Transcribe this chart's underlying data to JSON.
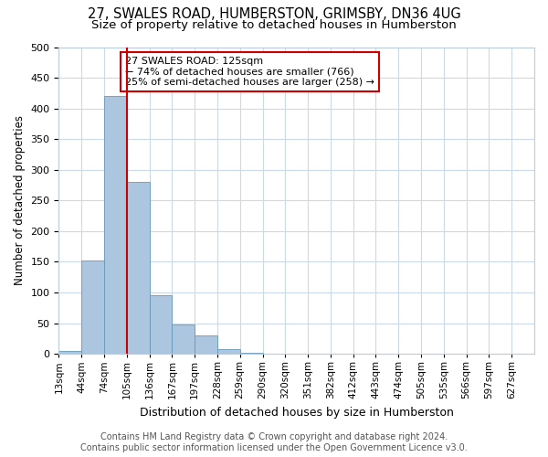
{
  "title": "27, SWALES ROAD, HUMBERSTON, GRIMSBY, DN36 4UG",
  "subtitle": "Size of property relative to detached houses in Humberston",
  "xlabel": "Distribution of detached houses by size in Humberston",
  "ylabel": "Number of detached properties",
  "bar_values": [
    5,
    152,
    420,
    280,
    96,
    48,
    30,
    8,
    2,
    0,
    0,
    0,
    0,
    0,
    0,
    0,
    0,
    0,
    0,
    0,
    0
  ],
  "bar_labels": [
    "13sqm",
    "44sqm",
    "74sqm",
    "105sqm",
    "136sqm",
    "167sqm",
    "197sqm",
    "228sqm",
    "259sqm",
    "290sqm",
    "320sqm",
    "351sqm",
    "382sqm",
    "412sqm",
    "443sqm",
    "474sqm",
    "505sqm",
    "535sqm",
    "566sqm",
    "597sqm",
    "627sqm"
  ],
  "bar_color": "#adc6e0",
  "bar_edge_color": "#6699bb",
  "property_line_x": 3.0,
  "property_line_color": "#cc0000",
  "annotation_text": "27 SWALES ROAD: 125sqm\n← 74% of detached houses are smaller (766)\n25% of semi-detached houses are larger (258) →",
  "annotation_box_edge": "#cc0000",
  "ylim": [
    0,
    500
  ],
  "yticks": [
    0,
    50,
    100,
    150,
    200,
    250,
    300,
    350,
    400,
    450,
    500
  ],
  "grid_color": "#ccd9e8",
  "background_color": "#ffffff",
  "footer_line1": "Contains HM Land Registry data © Crown copyright and database right 2024.",
  "footer_line2": "Contains public sector information licensed under the Open Government Licence v3.0.",
  "title_fontsize": 10.5,
  "subtitle_fontsize": 9.5,
  "xlabel_fontsize": 9,
  "ylabel_fontsize": 8.5,
  "footer_fontsize": 7,
  "tick_fontsize": 7.5,
  "ytick_fontsize": 8
}
